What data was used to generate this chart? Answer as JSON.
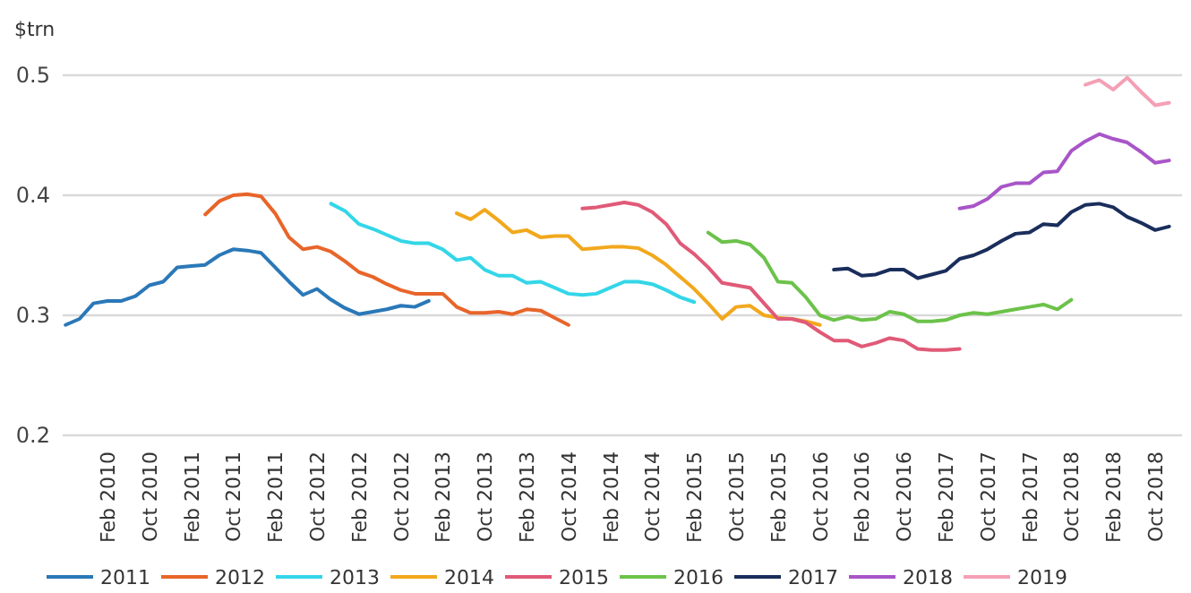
{
  "chart_data": {
    "type": "line",
    "ylabel": "$trn",
    "categories": [
      null,
      null,
      null,
      "Feb 2010",
      null,
      null,
      "Oct 2010",
      null,
      null,
      "Feb 2011",
      null,
      null,
      "Oct 2011",
      null,
      null,
      "Feb 2011",
      null,
      null,
      "Oct 2012",
      null,
      null,
      "Feb 2012",
      null,
      null,
      "Oct 2012",
      null,
      null,
      "Feb 2013",
      null,
      null,
      "Oct 2013",
      null,
      null,
      "Feb 2013",
      null,
      null,
      "Oct 2014",
      null,
      null,
      "Feb 2014",
      null,
      null,
      "Oct 2014",
      null,
      null,
      "Feb 2015",
      null,
      null,
      "Oct 2015",
      null,
      null,
      "Feb 2015",
      null,
      null,
      "Oct 2016",
      null,
      null,
      "Feb 2016",
      null,
      null,
      "Oct 2016",
      null,
      null,
      "Feb 2017",
      null,
      null,
      "Oct 2017",
      null,
      null,
      "Feb 2017",
      null,
      null,
      "Oct 2018",
      null,
      null,
      "Feb 2018",
      null,
      null,
      "Oct 2018",
      null
    ],
    "ylim": [
      0.2,
      0.5
    ],
    "yticks": [
      0.2,
      0.3,
      0.4,
      0.5
    ],
    "grid": "y",
    "legend": "bottom",
    "line_style": "solid",
    "series": [
      {
        "name": "2011",
        "color": "#2a78b8",
        "values": [
          0.292,
          0.297,
          0.31,
          0.312,
          0.312,
          0.316,
          0.325,
          0.328,
          0.34,
          0.341,
          0.342,
          0.35,
          0.355,
          0.354,
          0.352,
          0.34,
          0.328,
          0.317,
          0.322,
          0.313,
          0.306,
          0.301,
          0.303,
          0.305,
          0.308,
          0.307,
          0.312,
          null,
          null,
          null,
          null,
          null,
          null,
          null,
          null,
          null,
          null,
          null,
          null,
          null,
          null,
          null,
          null,
          null,
          null,
          null,
          null,
          null,
          null,
          null,
          null,
          null,
          null,
          null,
          null,
          null,
          null,
          null,
          null,
          null,
          null,
          null,
          null,
          null,
          null,
          null,
          null,
          null,
          null,
          null,
          null,
          null,
          null,
          null,
          null,
          null,
          null,
          null,
          null,
          null
        ]
      },
      {
        "name": "2012",
        "color": "#e8652a",
        "values": [
          null,
          null,
          null,
          null,
          null,
          null,
          null,
          null,
          null,
          null,
          0.384,
          0.395,
          0.4,
          0.401,
          0.399,
          0.385,
          0.365,
          0.355,
          0.357,
          0.353,
          0.345,
          0.336,
          0.332,
          0.326,
          0.321,
          0.318,
          0.318,
          0.318,
          0.307,
          0.302,
          0.302,
          0.303,
          0.301,
          0.305,
          0.304,
          0.298,
          0.292,
          null,
          null,
          null,
          null,
          null,
          null,
          null,
          null,
          null,
          null,
          null,
          null,
          null,
          null,
          null,
          null,
          null,
          null,
          null,
          null,
          null,
          null,
          null,
          null,
          null,
          null,
          null,
          null,
          null,
          null,
          null,
          null,
          null,
          null,
          null,
          null,
          null,
          null,
          null,
          null,
          null,
          null,
          null
        ]
      },
      {
        "name": "2013",
        "color": "#33d6e8",
        "values": [
          null,
          null,
          null,
          null,
          null,
          null,
          null,
          null,
          null,
          null,
          null,
          null,
          null,
          null,
          null,
          null,
          null,
          null,
          null,
          0.393,
          0.387,
          0.376,
          0.372,
          0.367,
          0.362,
          0.36,
          0.36,
          0.355,
          0.346,
          0.348,
          0.338,
          0.333,
          0.333,
          0.327,
          0.328,
          0.323,
          0.318,
          0.317,
          0.318,
          0.323,
          0.328,
          0.328,
          0.326,
          0.321,
          0.315,
          0.311,
          null,
          null,
          null,
          null,
          null,
          null,
          null,
          null,
          null,
          null,
          null,
          null,
          null,
          null,
          null,
          null,
          null,
          null,
          null,
          null,
          null,
          null,
          null,
          null,
          null,
          null,
          null,
          null,
          null,
          null,
          null,
          null,
          null,
          null
        ]
      },
      {
        "name": "2014",
        "color": "#f2a81d",
        "values": [
          null,
          null,
          null,
          null,
          null,
          null,
          null,
          null,
          null,
          null,
          null,
          null,
          null,
          null,
          null,
          null,
          null,
          null,
          null,
          null,
          null,
          null,
          null,
          null,
          null,
          null,
          null,
          null,
          0.385,
          0.38,
          0.388,
          0.379,
          0.369,
          0.371,
          0.365,
          0.366,
          0.366,
          0.355,
          0.356,
          0.357,
          0.357,
          0.356,
          0.35,
          0.342,
          0.332,
          0.322,
          0.31,
          0.297,
          0.307,
          0.308,
          0.3,
          0.298,
          0.297,
          0.295,
          0.292,
          null,
          null,
          null,
          null,
          null,
          null,
          null,
          null,
          null,
          null,
          null,
          null,
          null,
          null,
          null,
          null,
          null,
          null,
          null,
          null,
          null,
          null,
          null,
          null,
          null
        ]
      },
      {
        "name": "2015",
        "color": "#e05a77",
        "values": [
          null,
          null,
          null,
          null,
          null,
          null,
          null,
          null,
          null,
          null,
          null,
          null,
          null,
          null,
          null,
          null,
          null,
          null,
          null,
          null,
          null,
          null,
          null,
          null,
          null,
          null,
          null,
          null,
          null,
          null,
          null,
          null,
          null,
          null,
          null,
          null,
          null,
          0.389,
          0.39,
          0.392,
          0.394,
          0.392,
          0.386,
          0.376,
          0.36,
          0.351,
          0.34,
          0.327,
          0.325,
          0.323,
          0.31,
          0.297,
          0.297,
          0.294,
          0.286,
          0.279,
          0.279,
          0.274,
          0.277,
          0.281,
          0.279,
          0.272,
          0.271,
          0.271,
          0.272,
          null,
          null,
          null,
          null,
          null,
          null,
          null,
          null,
          null,
          null,
          null,
          null,
          null,
          null,
          null
        ]
      },
      {
        "name": "2016",
        "color": "#6cc24a",
        "values": [
          null,
          null,
          null,
          null,
          null,
          null,
          null,
          null,
          null,
          null,
          null,
          null,
          null,
          null,
          null,
          null,
          null,
          null,
          null,
          null,
          null,
          null,
          null,
          null,
          null,
          null,
          null,
          null,
          null,
          null,
          null,
          null,
          null,
          null,
          null,
          null,
          null,
          null,
          null,
          null,
          null,
          null,
          null,
          null,
          null,
          null,
          0.369,
          0.361,
          0.362,
          0.359,
          0.348,
          0.328,
          0.327,
          0.315,
          0.3,
          0.296,
          0.299,
          0.296,
          0.297,
          0.303,
          0.301,
          0.295,
          0.295,
          0.296,
          0.3,
          0.302,
          0.301,
          0.303,
          0.305,
          0.307,
          0.309,
          0.305,
          0.313,
          null,
          null,
          null,
          null,
          null,
          null,
          null
        ]
      },
      {
        "name": "2017",
        "color": "#1a2e5c",
        "values": [
          null,
          null,
          null,
          null,
          null,
          null,
          null,
          null,
          null,
          null,
          null,
          null,
          null,
          null,
          null,
          null,
          null,
          null,
          null,
          null,
          null,
          null,
          null,
          null,
          null,
          null,
          null,
          null,
          null,
          null,
          null,
          null,
          null,
          null,
          null,
          null,
          null,
          null,
          null,
          null,
          null,
          null,
          null,
          null,
          null,
          null,
          null,
          null,
          null,
          null,
          null,
          null,
          null,
          null,
          null,
          0.338,
          0.339,
          0.333,
          0.334,
          0.338,
          0.338,
          0.331,
          0.334,
          0.337,
          0.347,
          0.35,
          0.355,
          0.362,
          0.368,
          0.369,
          0.376,
          0.375,
          0.386,
          0.392,
          0.393,
          0.39,
          0.382,
          0.377,
          0.371,
          0.374
        ]
      },
      {
        "name": "2018",
        "color": "#a855c8",
        "values": [
          null,
          null,
          null,
          null,
          null,
          null,
          null,
          null,
          null,
          null,
          null,
          null,
          null,
          null,
          null,
          null,
          null,
          null,
          null,
          null,
          null,
          null,
          null,
          null,
          null,
          null,
          null,
          null,
          null,
          null,
          null,
          null,
          null,
          null,
          null,
          null,
          null,
          null,
          null,
          null,
          null,
          null,
          null,
          null,
          null,
          null,
          null,
          null,
          null,
          null,
          null,
          null,
          null,
          null,
          null,
          null,
          null,
          null,
          null,
          null,
          null,
          null,
          null,
          null,
          0.389,
          0.391,
          0.397,
          0.407,
          0.41,
          0.41,
          0.419,
          0.42,
          0.437,
          0.445,
          0.451,
          0.447,
          0.444,
          0.436,
          0.427,
          0.429
        ]
      },
      {
        "name": "2019",
        "color": "#f4a0b4",
        "values": [
          null,
          null,
          null,
          null,
          null,
          null,
          null,
          null,
          null,
          null,
          null,
          null,
          null,
          null,
          null,
          null,
          null,
          null,
          null,
          null,
          null,
          null,
          null,
          null,
          null,
          null,
          null,
          null,
          null,
          null,
          null,
          null,
          null,
          null,
          null,
          null,
          null,
          null,
          null,
          null,
          null,
          null,
          null,
          null,
          null,
          null,
          null,
          null,
          null,
          null,
          null,
          null,
          null,
          null,
          null,
          null,
          null,
          null,
          null,
          null,
          null,
          null,
          null,
          null,
          null,
          null,
          null,
          null,
          null,
          null,
          null,
          null,
          null,
          0.492,
          0.496,
          0.488,
          0.498,
          0.486,
          0.475,
          0.477
        ]
      }
    ]
  }
}
